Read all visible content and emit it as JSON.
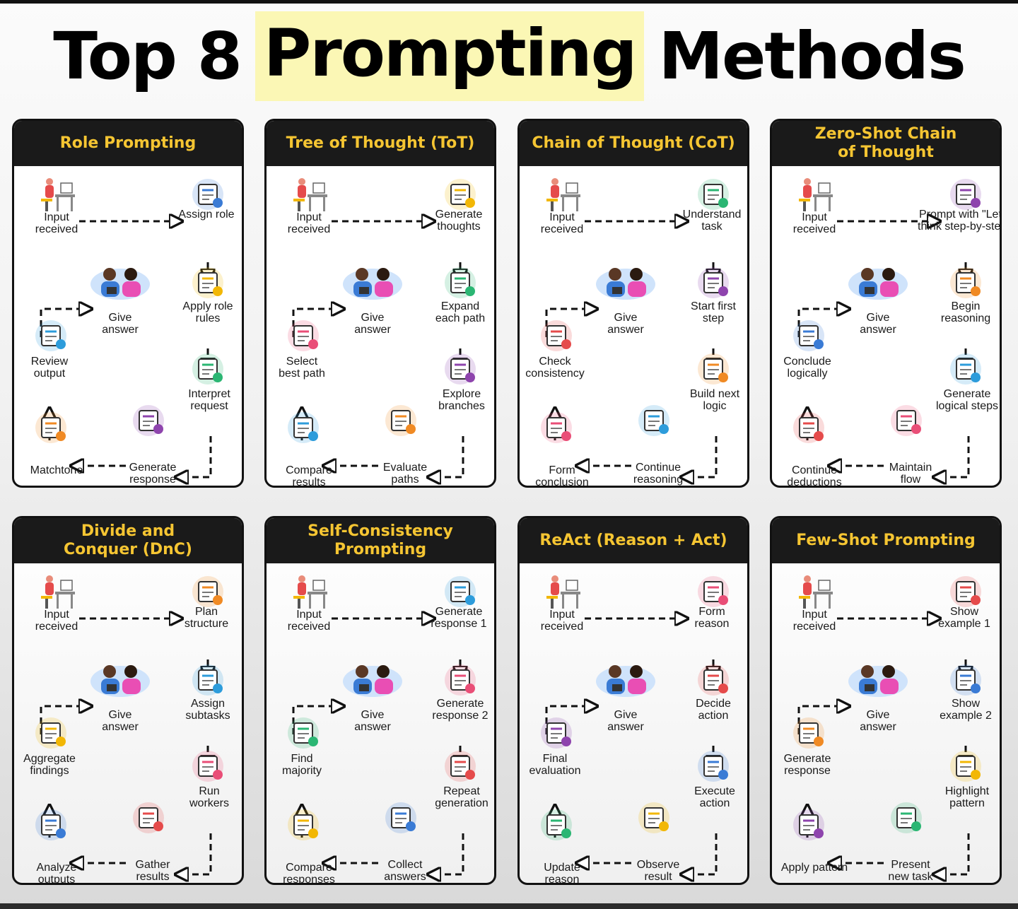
{
  "title": {
    "part1": "Top 8",
    "highlight": "Prompting",
    "part2": "Methods"
  },
  "panels": [
    {
      "title": "Role Prompting",
      "steps": [
        "Input\nreceived",
        "Assign role",
        "Apply role\nrules",
        "Interpret\nrequest",
        "Generate\nresponse",
        "Matchtone",
        "Review\noutput",
        "Give\nanswer"
      ]
    },
    {
      "title": "Tree of Thought (ToT)",
      "steps": [
        "Input\nreceived",
        "Generate\nthoughts",
        "Expand\neach path",
        "Explore\nbranches",
        "Evaluate\npaths",
        "Compare\nresults",
        "Select\nbest path",
        "Give\nanswer"
      ]
    },
    {
      "title": "Chain of Thought (CoT)",
      "steps": [
        "Input\nreceived",
        "Understand\ntask",
        "Start first\nstep",
        "Build next\nlogic",
        "Continue\nreasoning",
        "Form\nconclusion",
        "Check\nconsistency",
        "Give\nanswer"
      ]
    },
    {
      "title": "Zero-Shot Chain\nof Thought",
      "steps": [
        "Input\nreceived",
        "Prompt with \"Let's\nthink step-by-step\"",
        "Begin\nreasoning",
        "Generate\nlogical steps",
        "Maintain\nflow",
        "Continue\ndeductions",
        "Conclude\nlogically",
        "Give\nanswer"
      ]
    },
    {
      "title": "Divide and\nConquer (DnC)",
      "steps": [
        "Input\nreceived",
        "Plan\nstructure",
        "Assign\nsubtasks",
        "Run\nworkers",
        "Gather\nresults",
        "Analyze\noutputs",
        "Aggregate\nfindings",
        "Give\nanswer"
      ]
    },
    {
      "title": "Self-Consistency\nPrompting",
      "steps": [
        "Input\nreceived",
        "Generate\nresponse 1",
        "Generate\nresponse 2",
        "Repeat\ngeneration",
        "Collect\nanswers",
        "Compare\nresponses",
        "Find\nmajority",
        "Give\nanswer"
      ]
    },
    {
      "title": "ReAct (Reason + Act)",
      "steps": [
        "Input\nreceived",
        "Form\nreason",
        "Decide\naction",
        "Execute\naction",
        "Observe\nresult",
        "Update\nreason",
        "Final\nevaluation",
        "Give\nanswer"
      ]
    },
    {
      "title": "Few-Shot Prompting",
      "steps": [
        "Input\nreceived",
        "Show\nexample 1",
        "Show\nexample 2",
        "Highlight\npattern",
        "Present\nnew task",
        "Apply pattern",
        "Generate\nresponse",
        "Give\nanswer"
      ]
    }
  ],
  "colors": {
    "header_bg": "#1a1a1a",
    "header_text": "#f5c532",
    "highlight": "#fbf7b5",
    "arrow": "#111111"
  },
  "icons": [
    "person-at-desk-icon",
    "method-step-icon",
    "people-answer-icon"
  ]
}
